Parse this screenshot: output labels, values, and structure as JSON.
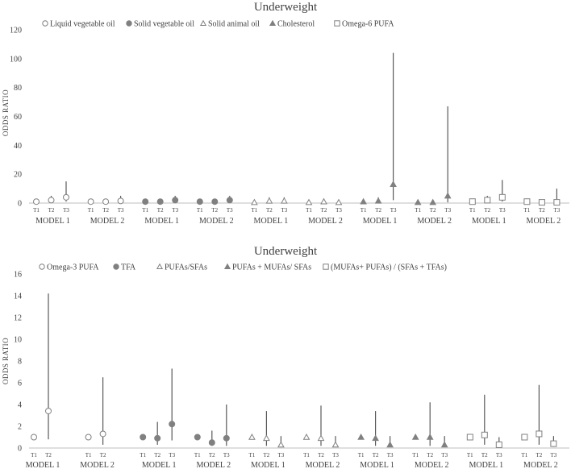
{
  "chart_data": [
    {
      "type": "scatter",
      "subtype": "odds-ratio-error-bars",
      "title": "Underweight",
      "ylabel": "ODDS RATIO",
      "ylim": [
        0,
        120
      ],
      "yticks": [
        0,
        20,
        40,
        60,
        80,
        100,
        120
      ],
      "grid": false,
      "legend_position": "top-left",
      "legend": [
        {
          "label": "Liquid vegetable oil",
          "marker": "circle-open"
        },
        {
          "label": "Solid vegetable oil",
          "marker": "circle-filled"
        },
        {
          "label": "Solid animal oil",
          "marker": "triangle-open"
        },
        {
          "label": "Cholesterol",
          "marker": "triangle-filled"
        },
        {
          "label": "Omega-6 PUFA",
          "marker": "square-open"
        }
      ],
      "groups": [
        {
          "series": 0,
          "model": "MODEL 1",
          "points": [
            {
              "t": "T1",
              "or": 1,
              "lo": 1,
              "hi": 1
            },
            {
              "t": "T2",
              "or": 2,
              "lo": 0.5,
              "hi": 5
            },
            {
              "t": "T3",
              "or": 4,
              "lo": 1,
              "hi": 15
            }
          ]
        },
        {
          "series": 0,
          "model": "MODEL 2",
          "points": [
            {
              "t": "T1",
              "or": 1,
              "lo": 1,
              "hi": 1
            },
            {
              "t": "T2",
              "or": 1,
              "lo": 0.3,
              "hi": 3
            },
            {
              "t": "T3",
              "or": 1.5,
              "lo": 0.3,
              "hi": 5
            }
          ]
        },
        {
          "series": 1,
          "model": "MODEL 1",
          "points": [
            {
              "t": "T1",
              "or": 1,
              "lo": 1,
              "hi": 1
            },
            {
              "t": "T2",
              "or": 1,
              "lo": 0.4,
              "hi": 2.5
            },
            {
              "t": "T3",
              "or": 2,
              "lo": 0.5,
              "hi": 5
            }
          ]
        },
        {
          "series": 1,
          "model": "MODEL 2",
          "points": [
            {
              "t": "T1",
              "or": 1,
              "lo": 1,
              "hi": 1
            },
            {
              "t": "T2",
              "or": 1,
              "lo": 0.3,
              "hi": 3
            },
            {
              "t": "T3",
              "or": 2,
              "lo": 0.4,
              "hi": 5
            }
          ]
        },
        {
          "series": 2,
          "model": "MODEL 1",
          "points": [
            {
              "t": "T1",
              "or": 0.5,
              "lo": 0.5,
              "hi": 0.5
            },
            {
              "t": "T2",
              "or": 1.5,
              "lo": 0.5,
              "hi": 4
            },
            {
              "t": "T3",
              "or": 1.5,
              "lo": 0.5,
              "hi": 4
            }
          ]
        },
        {
          "series": 2,
          "model": "MODEL 2",
          "points": [
            {
              "t": "T1",
              "or": 0.5,
              "lo": 0.5,
              "hi": 0.5
            },
            {
              "t": "T2",
              "or": 1,
              "lo": 0.3,
              "hi": 3
            },
            {
              "t": "T3",
              "or": 0.5,
              "lo": 0.2,
              "hi": 2
            }
          ]
        },
        {
          "series": 3,
          "model": "MODEL 1",
          "points": [
            {
              "t": "T1",
              "or": 1,
              "lo": 1,
              "hi": 1
            },
            {
              "t": "T2",
              "or": 1.5,
              "lo": 0.5,
              "hi": 4
            },
            {
              "t": "T3",
              "or": 13,
              "lo": 2,
              "hi": 104
            }
          ]
        },
        {
          "series": 3,
          "model": "MODEL 2",
          "points": [
            {
              "t": "T1",
              "or": 0.5,
              "lo": 0.5,
              "hi": 0.5
            },
            {
              "t": "T2",
              "or": 0.5,
              "lo": 0.2,
              "hi": 2
            },
            {
              "t": "T3",
              "or": 5,
              "lo": 0.5,
              "hi": 67
            }
          ]
        },
        {
          "series": 4,
          "model": "MODEL 1",
          "points": [
            {
              "t": "T1",
              "or": 1,
              "lo": 1,
              "hi": 1
            },
            {
              "t": "T2",
              "or": 2,
              "lo": 0.5,
              "hi": 5
            },
            {
              "t": "T3",
              "or": 4,
              "lo": 1,
              "hi": 16
            }
          ]
        },
        {
          "series": 4,
          "model": "MODEL 2",
          "points": [
            {
              "t": "T1",
              "or": 1,
              "lo": 1,
              "hi": 1
            },
            {
              "t": "T2",
              "or": 0.5,
              "lo": 0.2,
              "hi": 2
            },
            {
              "t": "T3",
              "or": 0.5,
              "lo": 0.2,
              "hi": 10
            }
          ]
        }
      ]
    },
    {
      "type": "scatter",
      "subtype": "odds-ratio-error-bars",
      "title": "Underweight",
      "ylabel": "ODDS RATIO",
      "ylim": [
        0,
        16
      ],
      "yticks": [
        0,
        2,
        4,
        6,
        8,
        10,
        12,
        14,
        16
      ],
      "grid": false,
      "legend_position": "top-left",
      "legend": [
        {
          "label": "Omega-3 PUFA",
          "marker": "circle-open"
        },
        {
          "label": "TFA",
          "marker": "circle-filled"
        },
        {
          "label": "PUFAs/SFAs",
          "marker": "triangle-open"
        },
        {
          "label": "PUFAs + MUFAs/ SFAs",
          "marker": "triangle-filled"
        },
        {
          "label": "(MUFAs+ PUFAs) / (SFAs + TFAs)",
          "marker": "square-open"
        }
      ],
      "groups": [
        {
          "series": 0,
          "model": "MODEL 1",
          "points": [
            {
              "t": "T1",
              "or": 1.0,
              "lo": 1.0,
              "hi": 1.0
            },
            {
              "t": "T2",
              "or": 3.4,
              "lo": 0.8,
              "hi": 14.2
            }
          ]
        },
        {
          "series": 0,
          "model": "MODEL 2",
          "points": [
            {
              "t": "T1",
              "or": 1.0,
              "lo": 1.0,
              "hi": 1.0
            },
            {
              "t": "T2",
              "or": 1.3,
              "lo": 0.3,
              "hi": 6.5
            }
          ]
        },
        {
          "series": 1,
          "model": "MODEL 1",
          "points": [
            {
              "t": "T1",
              "or": 1.0,
              "lo": 1.0,
              "hi": 1.0
            },
            {
              "t": "T2",
              "or": 0.9,
              "lo": 0.3,
              "hi": 2.4
            },
            {
              "t": "T3",
              "or": 2.2,
              "lo": 0.7,
              "hi": 7.3
            }
          ]
        },
        {
          "series": 1,
          "model": "MODEL 2",
          "points": [
            {
              "t": "T1",
              "or": 1.0,
              "lo": 1.0,
              "hi": 1.0
            },
            {
              "t": "T2",
              "or": 0.5,
              "lo": 0.2,
              "hi": 1.6
            },
            {
              "t": "T3",
              "or": 0.9,
              "lo": 0.2,
              "hi": 4.0
            }
          ]
        },
        {
          "series": 2,
          "model": "MODEL 1",
          "points": [
            {
              "t": "T1",
              "or": 1.0,
              "lo": 1.0,
              "hi": 1.0
            },
            {
              "t": "T2",
              "or": 0.9,
              "lo": 0.2,
              "hi": 3.4
            },
            {
              "t": "T3",
              "or": 0.3,
              "lo": 0.1,
              "hi": 1.1
            }
          ]
        },
        {
          "series": 2,
          "model": "MODEL 2",
          "points": [
            {
              "t": "T1",
              "or": 1.0,
              "lo": 1.0,
              "hi": 1.0
            },
            {
              "t": "T2",
              "or": 0.9,
              "lo": 0.2,
              "hi": 3.9
            },
            {
              "t": "T3",
              "or": 0.3,
              "lo": 0.1,
              "hi": 1.1
            }
          ]
        },
        {
          "series": 3,
          "model": "MODEL 1",
          "points": [
            {
              "t": "T1",
              "or": 1.0,
              "lo": 1.0,
              "hi": 1.0
            },
            {
              "t": "T2",
              "or": 0.9,
              "lo": 0.2,
              "hi": 3.4
            },
            {
              "t": "T3",
              "or": 0.3,
              "lo": 0.1,
              "hi": 1.1
            }
          ]
        },
        {
          "series": 3,
          "model": "MODEL 2",
          "points": [
            {
              "t": "T1",
              "or": 1.0,
              "lo": 1.0,
              "hi": 1.0
            },
            {
              "t": "T2",
              "or": 1.0,
              "lo": 0.2,
              "hi": 4.2
            },
            {
              "t": "T3",
              "or": 0.3,
              "lo": 0.1,
              "hi": 1.1
            }
          ]
        },
        {
          "series": 4,
          "model": "MODEL 1",
          "points": [
            {
              "t": "T1",
              "or": 1.0,
              "lo": 1.0,
              "hi": 1.0
            },
            {
              "t": "T2",
              "or": 1.2,
              "lo": 0.3,
              "hi": 4.9
            },
            {
              "t": "T3",
              "or": 0.3,
              "lo": 0.1,
              "hi": 1.0
            }
          ]
        },
        {
          "series": 4,
          "model": "MODEL 2",
          "points": [
            {
              "t": "T1",
              "or": 1.0,
              "lo": 1.0,
              "hi": 1.0
            },
            {
              "t": "T2",
              "or": 1.3,
              "lo": 0.3,
              "hi": 5.8
            },
            {
              "t": "T3",
              "or": 0.4,
              "lo": 0.1,
              "hi": 1.1
            }
          ]
        }
      ]
    }
  ]
}
